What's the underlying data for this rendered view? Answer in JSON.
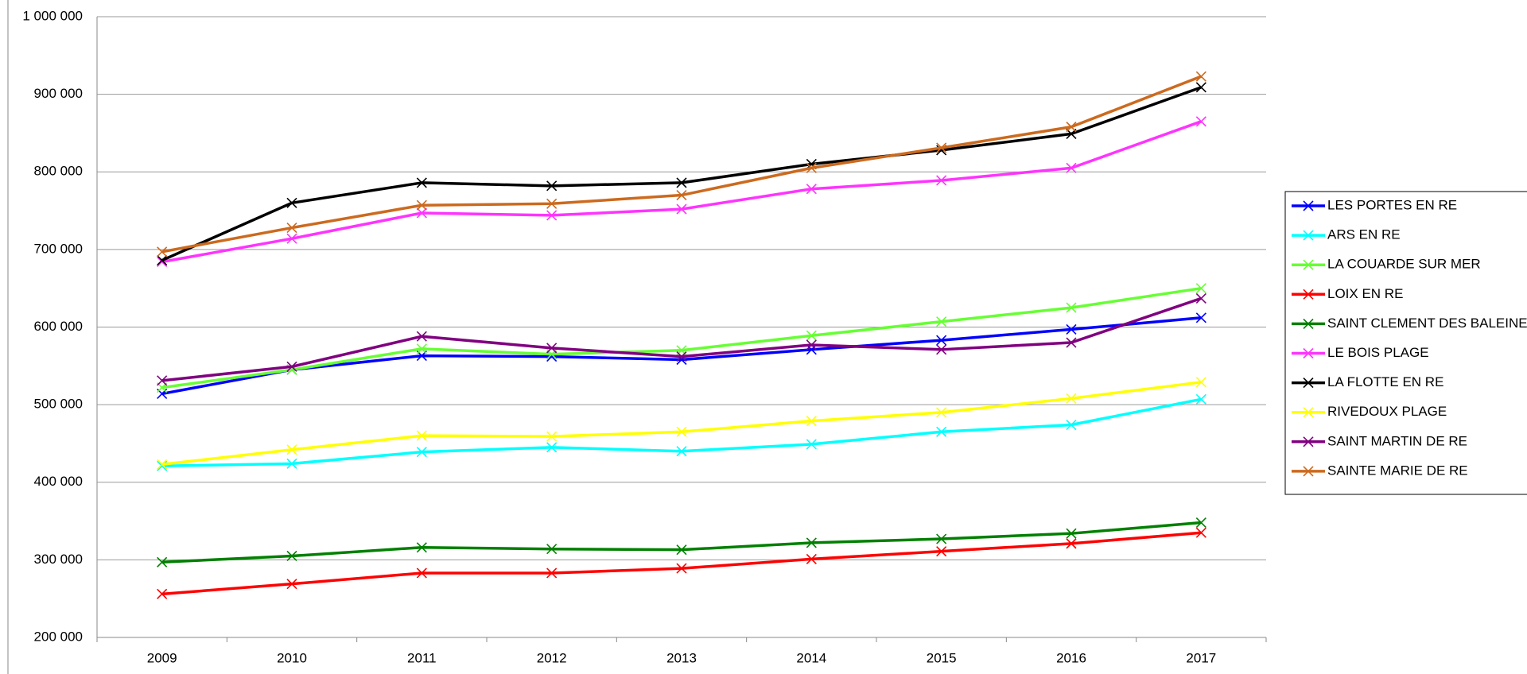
{
  "chart_data": {
    "type": "line",
    "categories": [
      "2009",
      "2010",
      "2011",
      "2012",
      "2013",
      "2014",
      "2015",
      "2016",
      "2017"
    ],
    "ylim": [
      200000,
      1000000
    ],
    "yticks": [
      {
        "value": 200000,
        "label": "200 000"
      },
      {
        "value": 300000,
        "label": "300 000"
      },
      {
        "value": 400000,
        "label": "400 000"
      },
      {
        "value": 500000,
        "label": "500 000"
      },
      {
        "value": 600000,
        "label": "600 000"
      },
      {
        "value": 700000,
        "label": "700 000"
      },
      {
        "value": 800000,
        "label": "800 000"
      },
      {
        "value": 900000,
        "label": "900 000"
      },
      {
        "value": 1000000,
        "label": "1 000 000"
      }
    ],
    "grid": true,
    "legend": "right",
    "series": [
      {
        "name": "LES PORTES EN RE",
        "color": "#0000ff",
        "values": [
          514000,
          545000,
          563000,
          562000,
          558000,
          571000,
          583000,
          597000,
          612000
        ]
      },
      {
        "name": "ARS EN RE",
        "color": "#00ffff",
        "values": [
          421000,
          424000,
          439000,
          445000,
          440000,
          449000,
          465000,
          474000,
          507000
        ]
      },
      {
        "name": "LA COUARDE SUR MER",
        "color": "#66ff33",
        "values": [
          522000,
          545000,
          572000,
          565000,
          570000,
          589000,
          607000,
          625000,
          650000
        ]
      },
      {
        "name": "LOIX EN RE",
        "color": "#ff0000",
        "values": [
          256000,
          269000,
          283000,
          283000,
          289000,
          301000,
          311000,
          321000,
          335000
        ]
      },
      {
        "name": "SAINT CLEMENT DES BALEINES",
        "color": "#008000",
        "values": [
          297000,
          305000,
          316000,
          314000,
          313000,
          322000,
          327000,
          334000,
          348000
        ]
      },
      {
        "name": "LE BOIS PLAGE",
        "color": "#ff33ff",
        "values": [
          684000,
          714000,
          747000,
          744000,
          752000,
          778000,
          789000,
          805000,
          865000
        ]
      },
      {
        "name": "LA FLOTTE EN RE",
        "color": "#000000",
        "values": [
          686000,
          760000,
          786000,
          782000,
          786000,
          810000,
          828000,
          849000,
          909000
        ]
      },
      {
        "name": "RIVEDOUX PLAGE",
        "color": "#ffff00",
        "values": [
          423000,
          442000,
          460000,
          459000,
          465000,
          479000,
          490000,
          508000,
          529000
        ]
      },
      {
        "name": "SAINT MARTIN DE RE",
        "color": "#800080",
        "values": [
          531000,
          549000,
          588000,
          573000,
          562000,
          577000,
          571000,
          580000,
          637000
        ]
      },
      {
        "name": "SAINTE MARIE DE RE",
        "color": "#cc6a1e",
        "values": [
          697000,
          728000,
          757000,
          759000,
          770000,
          805000,
          831000,
          858000,
          923000
        ]
      }
    ]
  }
}
